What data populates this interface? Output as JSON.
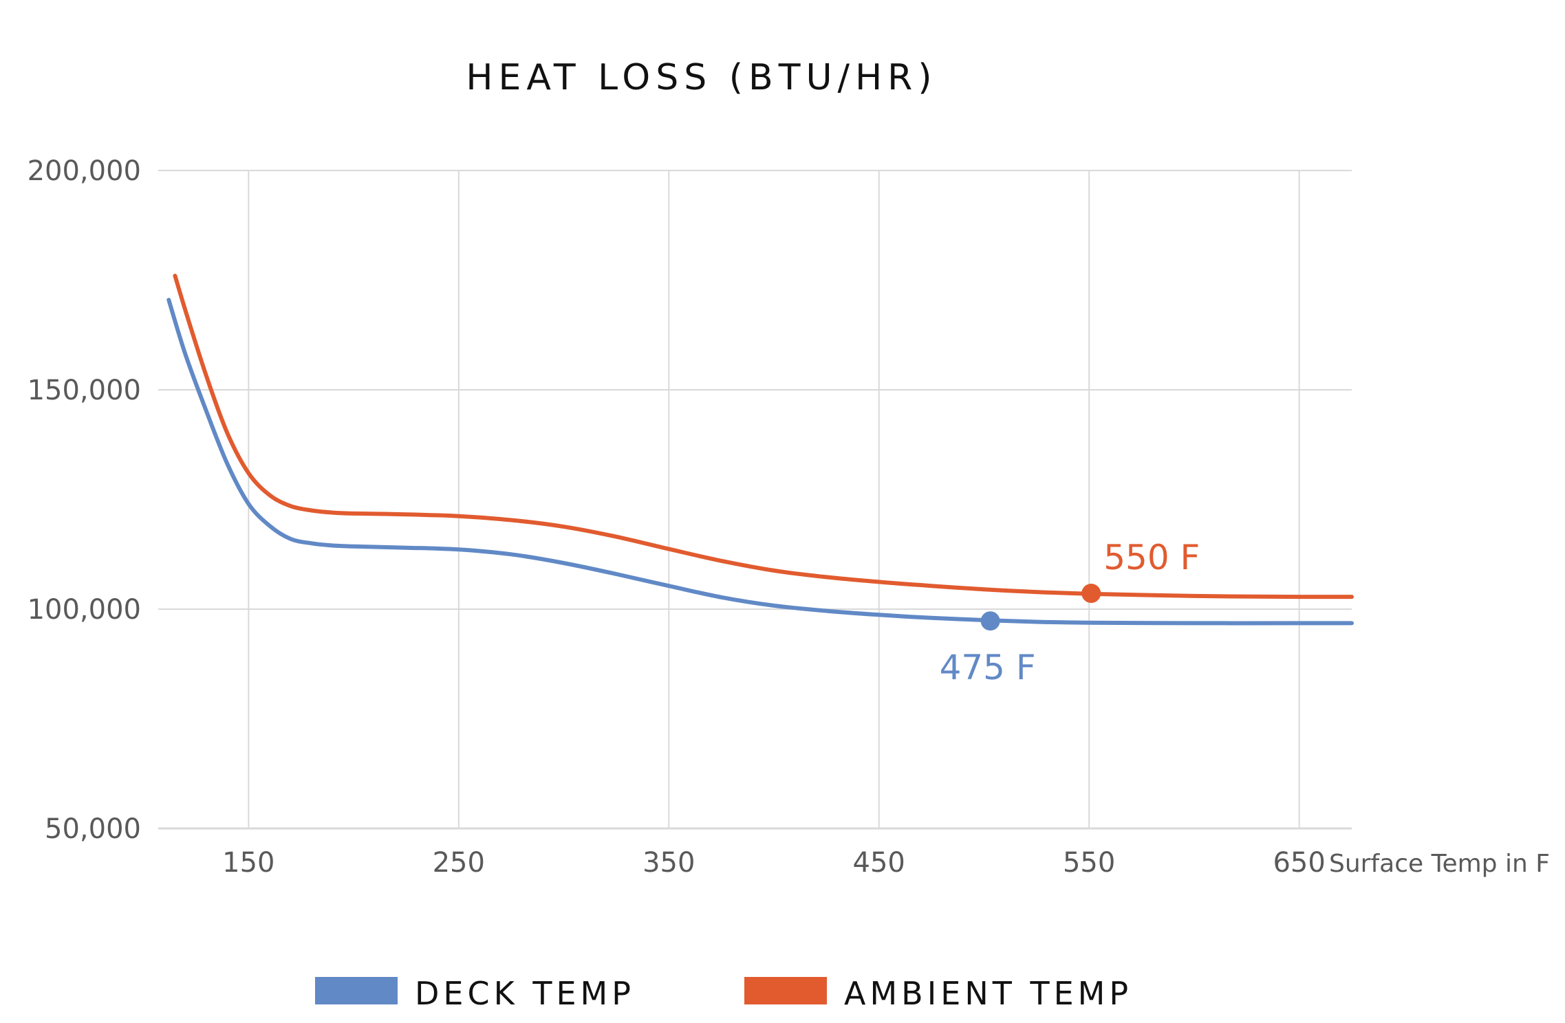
{
  "chart_data": {
    "type": "line",
    "title": "HEAT LOSS (BTU/HR)",
    "xlabel": "Surface Temp in F",
    "ylabel": "",
    "xlim": [
      107,
      675
    ],
    "ylim": [
      50000,
      200000
    ],
    "x_ticks": [
      150,
      250,
      350,
      450,
      550,
      650
    ],
    "x_tick_labels": [
      "150",
      "250",
      "350",
      "450",
      "550",
      "650"
    ],
    "y_ticks": [
      50000,
      100000,
      150000,
      200000
    ],
    "y_tick_labels": [
      "50,000",
      "100,000",
      "150,000",
      "200,000"
    ],
    "grid": true,
    "legend_position": "bottom",
    "series": [
      {
        "name": "DECK TEMP",
        "color": "#6189C6",
        "x": [
          112,
          120,
          130,
          140,
          150,
          160,
          170,
          180,
          190,
          200,
          225,
          250,
          275,
          300,
          325,
          350,
          375,
          400,
          425,
          450,
          475,
          500,
          525,
          550,
          600,
          650,
          675
        ],
        "values": [
          170500,
          158000,
          145000,
          133000,
          124000,
          119000,
          116000,
          115000,
          114500,
          114300,
          114000,
          113600,
          112500,
          110500,
          108000,
          105300,
          102700,
          100800,
          99600,
          98700,
          98000,
          97500,
          97100,
          96900,
          96800,
          96800,
          96800
        ]
      },
      {
        "name": "AMBIENT TEMP",
        "color": "#E15B2F",
        "x": [
          115,
          120,
          130,
          140,
          150,
          160,
          170,
          180,
          190,
          200,
          225,
          250,
          275,
          300,
          325,
          350,
          375,
          400,
          425,
          450,
          475,
          500,
          525,
          550,
          600,
          650,
          675
        ],
        "values": [
          176000,
          168000,
          153000,
          140000,
          131000,
          126000,
          123500,
          122500,
          122000,
          121800,
          121600,
          121200,
          120300,
          118800,
          116500,
          113700,
          111000,
          108800,
          107300,
          106200,
          105300,
          104500,
          103900,
          103500,
          103000,
          102800,
          102800
        ]
      }
    ],
    "annotations": [
      {
        "series": "DECK TEMP",
        "x": 503,
        "y": 97300,
        "label": "475 F",
        "color": "#6189C6"
      },
      {
        "series": "AMBIENT TEMP",
        "x": 551,
        "y": 103600,
        "label": "550 F",
        "color": "#E15B2F"
      }
    ],
    "axis_color": "#D9D9D9",
    "grid_color": "#D9D9D9"
  }
}
